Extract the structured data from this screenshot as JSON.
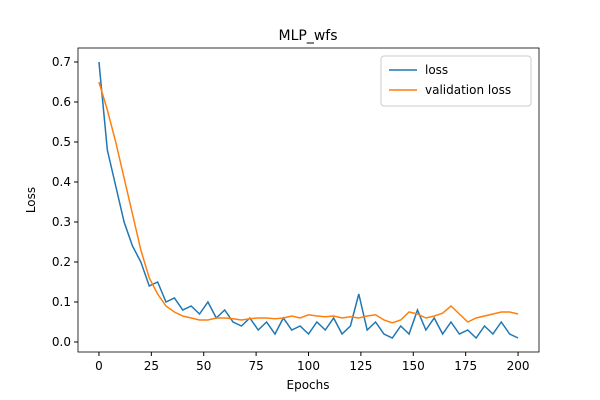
{
  "chart_data": {
    "type": "line",
    "title": "MLP_wfs",
    "x_label": "Epochs",
    "y_label": "Loss",
    "x": [
      0,
      4,
      8,
      12,
      16,
      20,
      24,
      28,
      32,
      36,
      40,
      44,
      48,
      52,
      56,
      60,
      64,
      68,
      72,
      76,
      80,
      84,
      88,
      92,
      96,
      100,
      104,
      108,
      112,
      116,
      120,
      124,
      128,
      132,
      136,
      140,
      144,
      148,
      152,
      156,
      160,
      164,
      168,
      172,
      176,
      180,
      184,
      188,
      192,
      196,
      200
    ],
    "series": [
      {
        "name": "loss",
        "color": "#1f77b4",
        "values": [
          0.7,
          0.48,
          0.39,
          0.3,
          0.24,
          0.2,
          0.14,
          0.15,
          0.1,
          0.11,
          0.08,
          0.09,
          0.07,
          0.1,
          0.06,
          0.08,
          0.05,
          0.04,
          0.06,
          0.03,
          0.05,
          0.02,
          0.06,
          0.03,
          0.04,
          0.02,
          0.05,
          0.03,
          0.06,
          0.02,
          0.04,
          0.12,
          0.03,
          0.05,
          0.02,
          0.01,
          0.04,
          0.02,
          0.08,
          0.03,
          0.06,
          0.02,
          0.05,
          0.02,
          0.03,
          0.01,
          0.04,
          0.02,
          0.05,
          0.02,
          0.01
        ]
      },
      {
        "name": "validation loss",
        "color": "#ff7f0e",
        "values": [
          0.65,
          0.58,
          0.5,
          0.41,
          0.32,
          0.23,
          0.16,
          0.12,
          0.09,
          0.075,
          0.065,
          0.06,
          0.055,
          0.055,
          0.06,
          0.06,
          0.058,
          0.055,
          0.058,
          0.06,
          0.06,
          0.058,
          0.06,
          0.065,
          0.06,
          0.068,
          0.065,
          0.063,
          0.065,
          0.06,
          0.063,
          0.06,
          0.065,
          0.068,
          0.055,
          0.048,
          0.055,
          0.075,
          0.07,
          0.06,
          0.065,
          0.072,
          0.09,
          0.07,
          0.05,
          0.06,
          0.065,
          0.07,
          0.075,
          0.075,
          0.07
        ]
      }
    ],
    "xlim": [
      -10,
      210
    ],
    "ylim": [
      -0.025,
      0.735
    ],
    "xticks": [
      0,
      25,
      50,
      75,
      100,
      125,
      150,
      175,
      200
    ],
    "yticks": [
      {
        "value": 0,
        "label": "0.0"
      },
      0.1,
      0.2,
      0.3,
      0.4,
      0.5,
      0.6,
      0.7
    ],
    "legend": "upper right"
  }
}
